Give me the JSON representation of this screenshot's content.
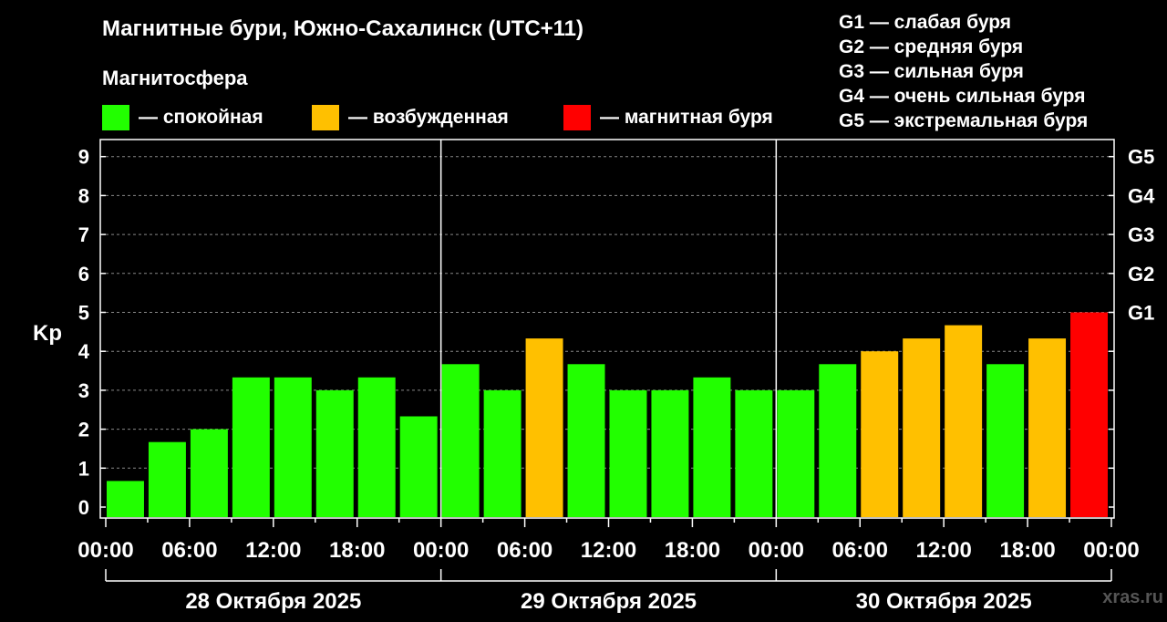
{
  "title": "Магнитные бури, Южно-Сахалинск (UTC+11)",
  "legend": {
    "heading": "Магнитосфера",
    "items": [
      {
        "label": "— спокойная",
        "color": "#22ff00"
      },
      {
        "label": "— возбужденная",
        "color": "#ffc000"
      },
      {
        "label": "— магнитная буря",
        "color": "#ff0000"
      }
    ]
  },
  "g_scale": [
    "G1 — слабая буря",
    "G2 — средняя буря",
    "G3 — сильная буря",
    "G4 — очень сильная буря",
    "G5 — экстремальная буря"
  ],
  "watermark": "xras.ru",
  "chart_data": {
    "type": "bar",
    "ylabel": "Kp",
    "ylim": [
      0,
      9
    ],
    "yticks": [
      "0",
      "1",
      "2",
      "3",
      "4",
      "5",
      "6",
      "7",
      "8",
      "9"
    ],
    "right_axis_labels": [
      {
        "level": 5,
        "label": "G1"
      },
      {
        "level": 6,
        "label": "G2"
      },
      {
        "level": 7,
        "label": "G3"
      },
      {
        "level": 8,
        "label": "G4"
      },
      {
        "level": 9,
        "label": "G5"
      }
    ],
    "x_tick_labels": [
      "00:00",
      "06:00",
      "12:00",
      "18:00",
      "00:00",
      "06:00",
      "12:00",
      "18:00",
      "00:00",
      "06:00",
      "12:00",
      "18:00",
      "00:00"
    ],
    "days": [
      "28 Октября 2025",
      "29 Октября 2025",
      "30 Октября 2025"
    ],
    "grid": "dashed horizontal",
    "values": [
      0.67,
      1.67,
      2.0,
      3.33,
      3.33,
      3.0,
      3.33,
      2.33,
      3.67,
      3.0,
      4.33,
      3.67,
      3.0,
      3.0,
      3.33,
      3.0,
      3.0,
      3.67,
      4.0,
      4.33,
      4.67,
      3.67,
      4.33,
      5.0
    ],
    "levels": [
      "quiet",
      "quiet",
      "quiet",
      "quiet",
      "quiet",
      "quiet",
      "quiet",
      "quiet",
      "quiet",
      "quiet",
      "active",
      "quiet",
      "quiet",
      "quiet",
      "quiet",
      "quiet",
      "quiet",
      "quiet",
      "active",
      "active",
      "active",
      "quiet",
      "active",
      "storm"
    ],
    "level_colors": {
      "quiet": "#22ff00",
      "active": "#ffc000",
      "storm": "#ff0000"
    }
  }
}
